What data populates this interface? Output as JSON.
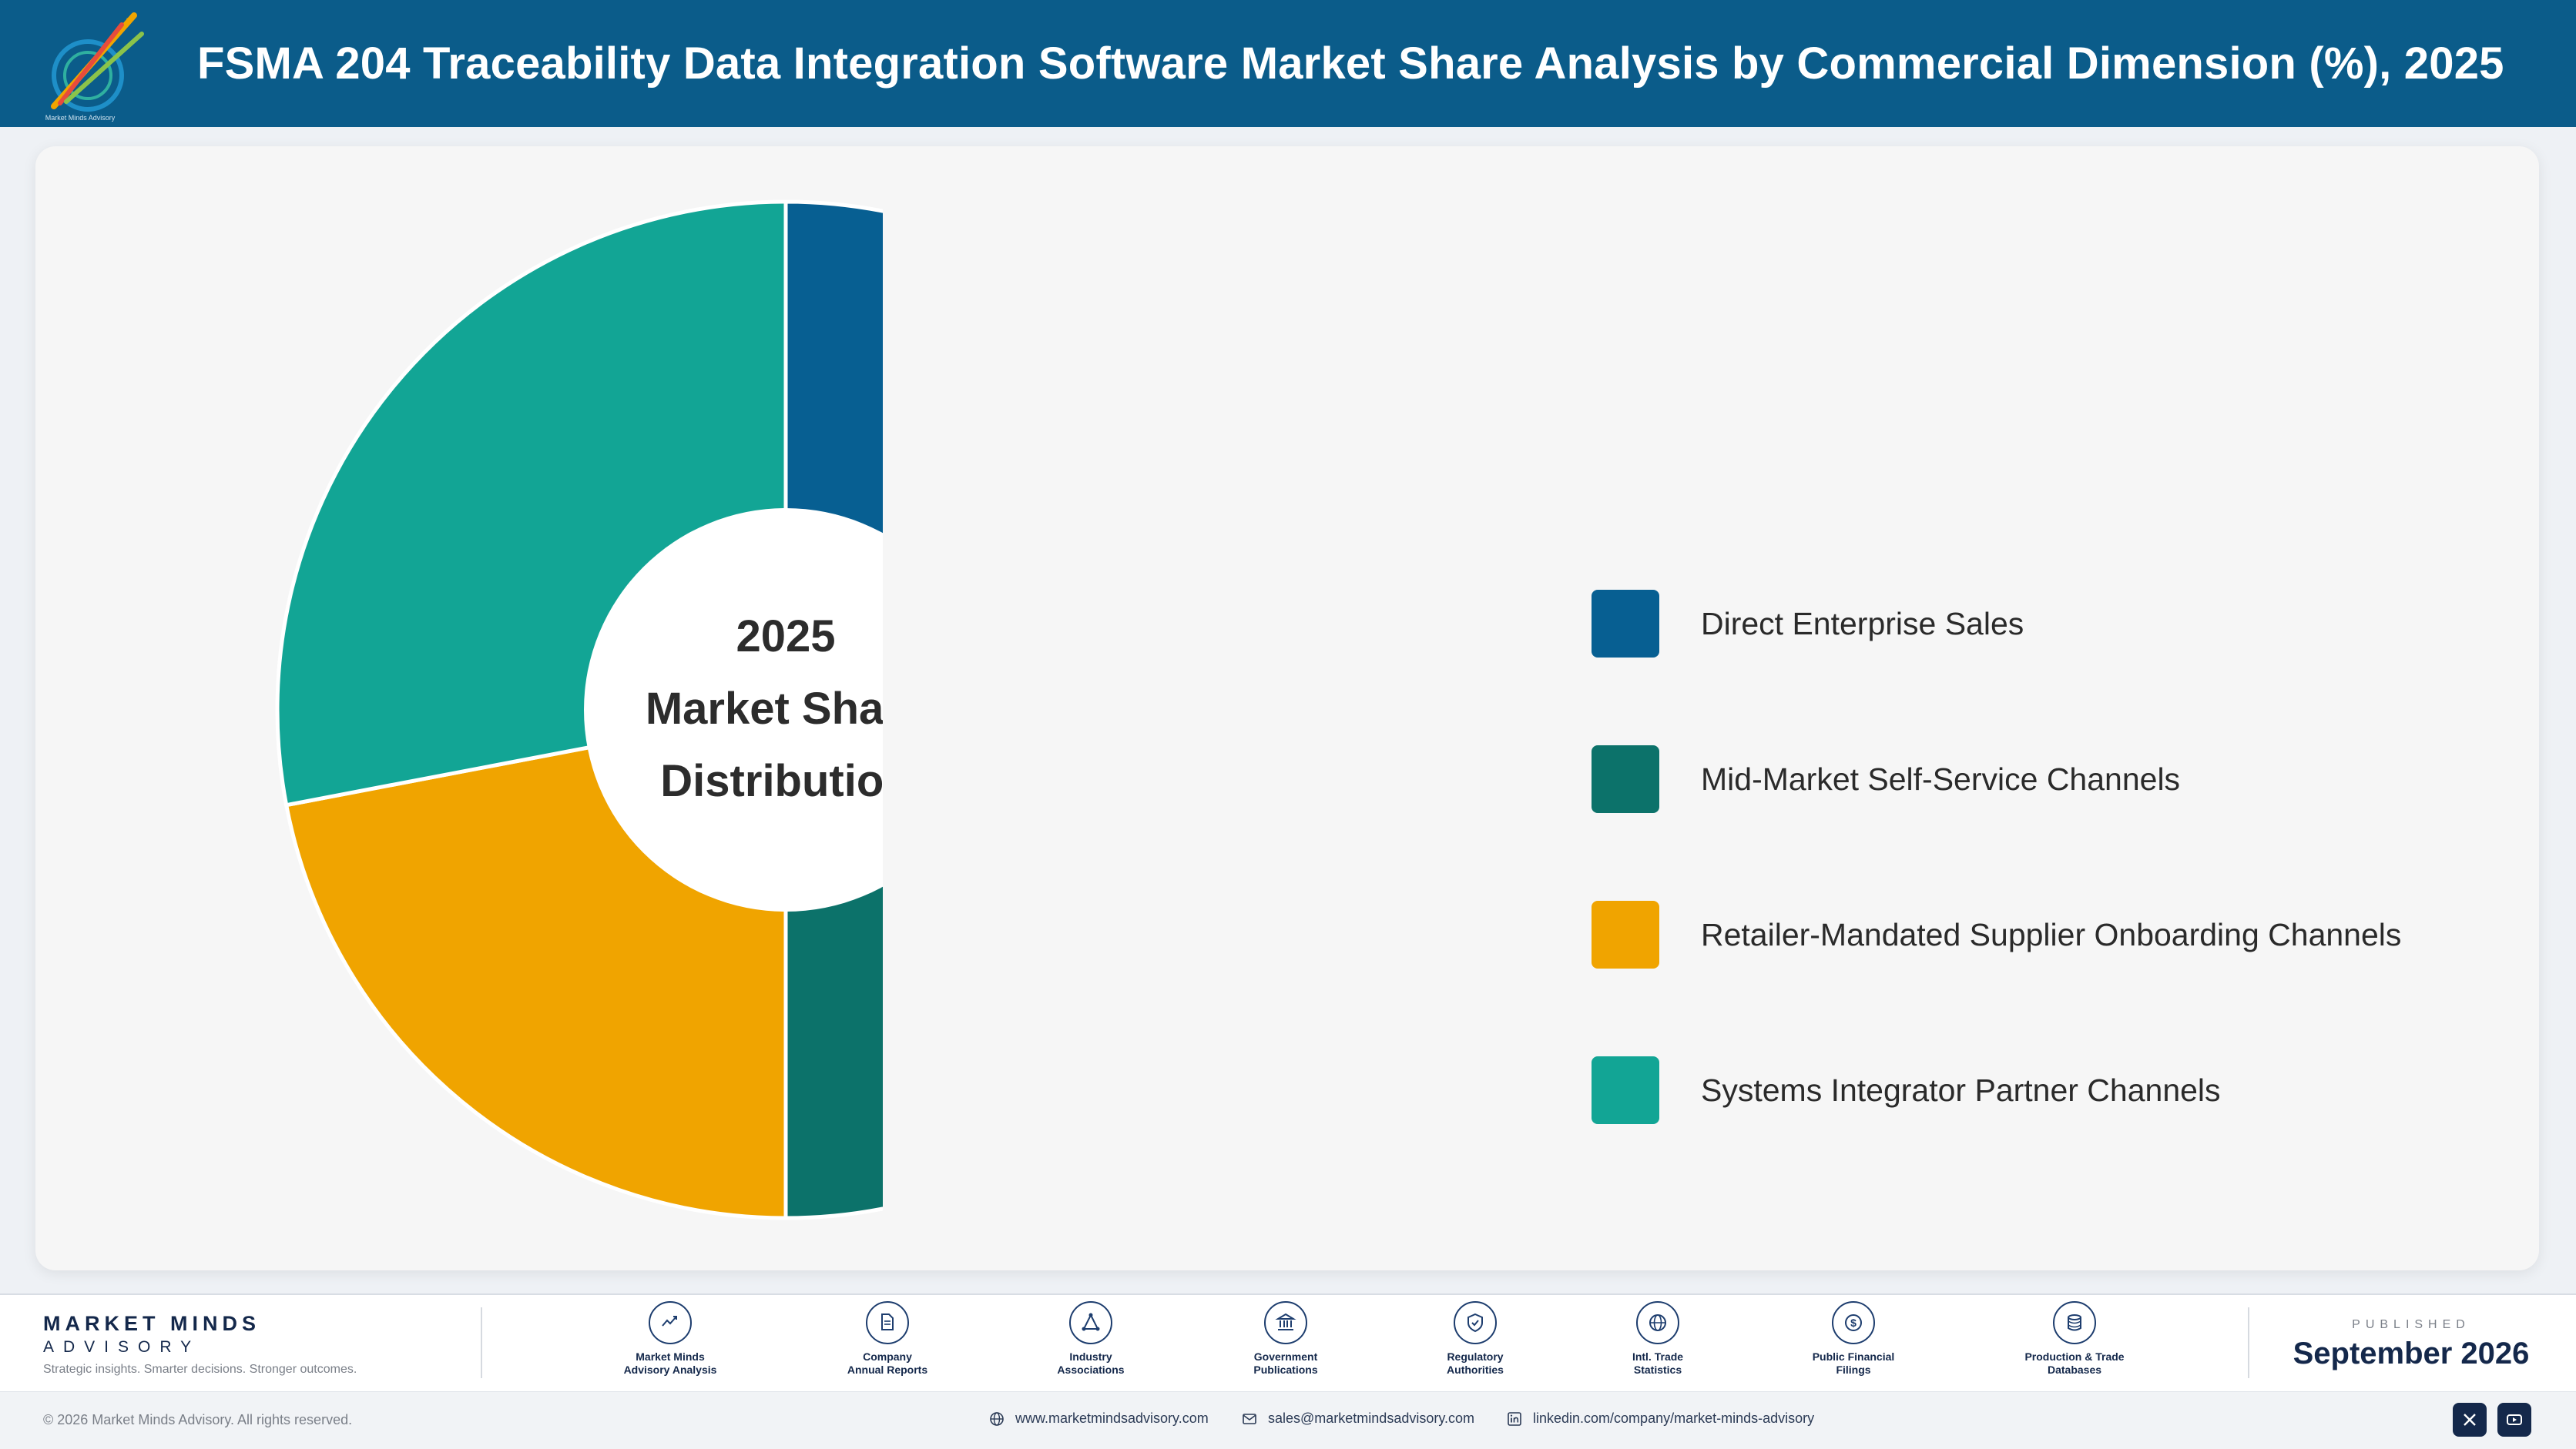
{
  "header": {
    "title": "FSMA 204 Traceability Data Integration Software Market Share Analysis by Commercial Dimension (%), 2025"
  },
  "chart_data": {
    "type": "pie",
    "title": "FSMA 204 Traceability Data Integration Software Market Share Analysis by Commercial Dimension (%), 2025",
    "center_label": [
      "2025",
      "Market Share",
      "Distribution"
    ],
    "categories": [
      "Direct Enterprise Sales",
      "Mid-Market Self-Service Channels",
      "Retailer-Mandated Supplier Onboarding Channels",
      "Systems Integrator Partner Channels"
    ],
    "values": [
      30,
      20,
      22,
      28
    ],
    "colors": [
      "#075f92",
      "#0c726a",
      "#f0a400",
      "#12a595"
    ],
    "legend_position": "right"
  },
  "footer": {
    "brand": {
      "name": "MARKET MINDS",
      "sub": "ADVISORY",
      "tagline": "Strategic insights. Smarter decisions. Stronger outcomes."
    },
    "sources": [
      {
        "label1": "Market Minds",
        "label2": "Advisory Analysis",
        "icon": "chart-line-icon"
      },
      {
        "label1": "Company",
        "label2": "Annual Reports",
        "icon": "document-icon"
      },
      {
        "label1": "Industry",
        "label2": "Associations",
        "icon": "network-icon"
      },
      {
        "label1": "Government",
        "label2": "Publications",
        "icon": "building-icon"
      },
      {
        "label1": "Regulatory",
        "label2": "Authorities",
        "icon": "shield-icon"
      },
      {
        "label1": "Intl. Trade",
        "label2": "Statistics",
        "icon": "globe-icon"
      },
      {
        "label1": "Public Financial",
        "label2": "Filings",
        "icon": "dollar-icon"
      },
      {
        "label1": "Production & Trade",
        "label2": "Databases",
        "icon": "database-icon"
      }
    ],
    "published_label": "PUBLISHED",
    "published_date": "September 2026",
    "copyright": "© 2026 Market Minds Advisory. All rights reserved.",
    "website": "www.marketmindsadvisory.com",
    "email": "sales@marketmindsadvisory.com",
    "linkedin": "linkedin.com/company/market-minds-advisory"
  }
}
